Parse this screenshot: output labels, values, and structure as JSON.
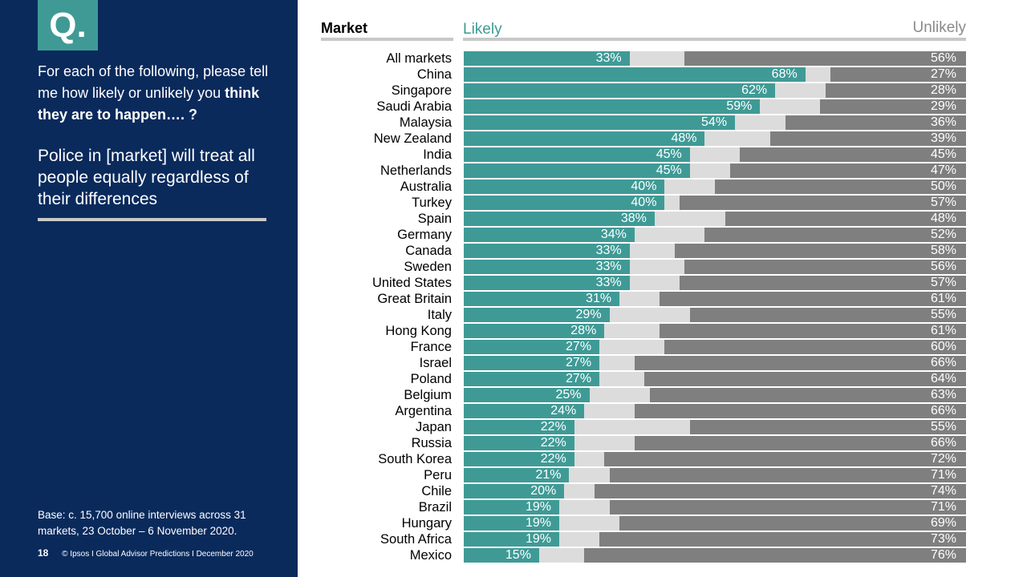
{
  "sidebar": {
    "badge": "Q.",
    "question_part1": "For each of the following, please tell me how likely or unlikely you",
    "question_bold": "think they are to happen…. ?",
    "statement": "Police in [market] will treat all people equally regardless of their differences",
    "base_note": "Base: c. 15,700 online interviews across 31 markets,  23 October – 6 November 2020.",
    "page_number": "18",
    "footer_text": "© Ipsos I Global Advisor Predictions I December 2020"
  },
  "colors": {
    "likely": "#3f9a96",
    "neutral": "#dcdcdc",
    "unlikely": "#7f7f7f",
    "panel": "#0a2a5c"
  },
  "chart_data": {
    "type": "bar",
    "orientation": "horizontal-stacked",
    "header_market": "Market",
    "header_likely": "Likely",
    "header_unlikely": "Unlikely",
    "categories": [
      "All markets",
      "China",
      "Singapore",
      "Saudi Arabia",
      "Malaysia",
      "New Zealand",
      "India",
      "Netherlands",
      "Australia",
      "Turkey",
      "Spain",
      "Germany",
      "Canada",
      "Sweden",
      "United States",
      "Great Britain",
      "Italy",
      "Hong Kong",
      "France",
      "Israel",
      "Poland",
      "Belgium",
      "Argentina",
      "Japan",
      "Russia",
      "South Korea",
      "Peru",
      "Chile",
      "Brazil",
      "Hungary",
      "South Africa",
      "Mexico"
    ],
    "series": [
      {
        "name": "Likely",
        "values": [
          33,
          68,
          62,
          59,
          54,
          48,
          45,
          45,
          40,
          40,
          38,
          34,
          33,
          33,
          33,
          31,
          29,
          28,
          27,
          27,
          27,
          25,
          24,
          22,
          22,
          22,
          21,
          20,
          19,
          19,
          19,
          15
        ]
      },
      {
        "name": "Unlikely",
        "values": [
          56,
          27,
          28,
          29,
          36,
          39,
          45,
          47,
          50,
          57,
          48,
          52,
          58,
          56,
          57,
          61,
          55,
          61,
          60,
          66,
          64,
          63,
          66,
          55,
          66,
          72,
          71,
          74,
          71,
          69,
          73,
          76
        ]
      }
    ],
    "xlim": [
      0,
      100
    ]
  }
}
